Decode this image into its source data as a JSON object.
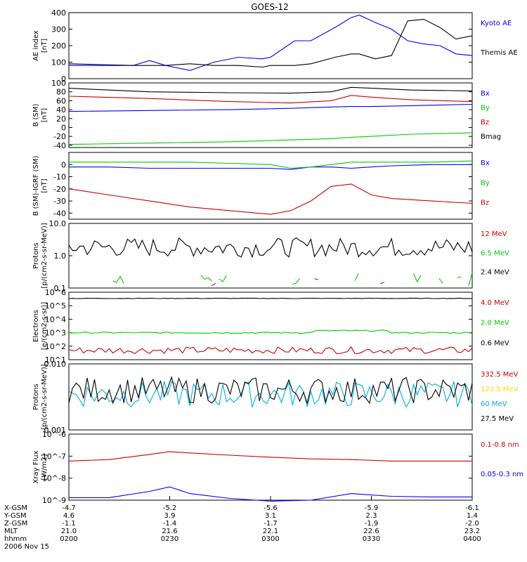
{
  "title": "GOES-12",
  "date": "2006 Nov 15",
  "colors": {
    "black": "#000000",
    "blue": "#0000ff",
    "red": "#cc0000",
    "green": "#00cc00",
    "yellow": "#ffd700",
    "cyan": "#00b0e0"
  },
  "footer": {
    "row_labels": [
      "X-GSM",
      "Y-GSM",
      "Z-GSM",
      "MLT",
      "hhmm"
    ],
    "columns": [
      [
        "-4.7",
        "4.6",
        "-1.1",
        "21.0",
        "0200"
      ],
      [
        "-5.2",
        "3.9",
        "-1.4",
        "21.6",
        "0230"
      ],
      [
        "-5.6",
        "3.1",
        "-1.7",
        "22.1",
        "0300"
      ],
      [
        "-5.9",
        "2.3",
        "-1.9",
        "22.6",
        "0330"
      ],
      [
        "-6.1",
        "1.4",
        "-2.0",
        "23.2",
        "0400"
      ]
    ]
  },
  "chart_data": [
    {
      "type": "line",
      "ylabel": "AE index",
      "yunit": "[nT]",
      "ylim": [
        0,
        400
      ],
      "yticks": [
        "0",
        "100",
        "200",
        "300",
        "400"
      ],
      "x": [
        0,
        0.08,
        0.16,
        0.2,
        0.24,
        0.3,
        0.36,
        0.42,
        0.48,
        0.5,
        0.56,
        0.6,
        0.66,
        0.7,
        0.72,
        0.76,
        0.8,
        0.84,
        0.88,
        0.92,
        0.96,
        1.0
      ],
      "series": [
        {
          "name": "Kyoto AE",
          "color": "#0000ff",
          "values": [
            80,
            80,
            80,
            110,
            80,
            50,
            100,
            130,
            120,
            130,
            230,
            230,
            310,
            370,
            385,
            340,
            300,
            230,
            210,
            200,
            150,
            140
          ]
        },
        {
          "name": "Themis AE",
          "color": "#000000",
          "values": [
            90,
            85,
            80,
            80,
            80,
            90,
            80,
            80,
            70,
            80,
            80,
            90,
            130,
            150,
            150,
            120,
            140,
            350,
            360,
            310,
            240,
            260
          ]
        }
      ]
    },
    {
      "type": "line",
      "ylabel": "B (SM)",
      "yunit": "[nT]",
      "ylim": [
        -45,
        100
      ],
      "yticks": [
        "-40",
        "-20",
        "0",
        "20",
        "40",
        "60",
        "80",
        "100"
      ],
      "x": [
        0,
        0.2,
        0.4,
        0.55,
        0.65,
        0.7,
        0.75,
        0.85,
        1.0
      ],
      "series": [
        {
          "name": "Bx",
          "color": "#0000ff",
          "values": [
            36,
            38,
            40,
            43,
            46,
            47,
            47,
            49,
            52
          ]
        },
        {
          "name": "By",
          "color": "#00cc00",
          "values": [
            -38,
            -35,
            -32,
            -28,
            -25,
            -22,
            -20,
            -15,
            -12
          ]
        },
        {
          "name": "Bz",
          "color": "#cc0000",
          "values": [
            70,
            65,
            58,
            55,
            60,
            72,
            68,
            62,
            58
          ]
        },
        {
          "name": "Bmag",
          "color": "#000000",
          "values": [
            88,
            80,
            78,
            77,
            80,
            90,
            88,
            84,
            82
          ]
        }
      ]
    },
    {
      "type": "line",
      "ylabel": "B (SM)-IGRF (SM)",
      "yunit": "[nT]",
      "ylim": [
        -45,
        10
      ],
      "yticks": [
        "-40",
        "-30",
        "-20",
        "-10",
        "0"
      ],
      "x": [
        0,
        0.1,
        0.2,
        0.3,
        0.4,
        0.5,
        0.55,
        0.6,
        0.65,
        0.7,
        0.75,
        0.8,
        0.9,
        1.0
      ],
      "series": [
        {
          "name": "Bx",
          "color": "#0000ff",
          "values": [
            -2,
            -2,
            -3,
            -3,
            -3,
            -3,
            -4,
            -2,
            -2,
            -3,
            -2,
            -1,
            0,
            0
          ]
        },
        {
          "name": "By",
          "color": "#00cc00",
          "values": [
            2,
            2,
            2,
            2,
            1,
            0,
            -3,
            -2,
            0,
            2,
            2,
            2,
            2,
            3
          ]
        },
        {
          "name": "Bz",
          "color": "#cc0000",
          "values": [
            -20,
            -25,
            -30,
            -35,
            -38,
            -41,
            -38,
            -30,
            -18,
            -16,
            -25,
            -28,
            -30,
            -32
          ]
        }
      ]
    },
    {
      "type": "line",
      "ylabel": "Protons",
      "yunit": "[p/(cm2-s-sr-MeV)]",
      "log": true,
      "ylim": [
        0.1,
        10
      ],
      "yticks": [
        "0.1",
        "1.0",
        "10.0"
      ],
      "series": [
        {
          "name": "12 MeV",
          "color": "#cc0000"
        },
        {
          "name": "6.5 MeV",
          "color": "#00cc00"
        },
        {
          "name": "2.4 MeV",
          "color": "#000000"
        }
      ]
    },
    {
      "type": "line",
      "ylabel": "Electrons",
      "yunit": "[e/(cm2-s-sr)]",
      "log": true,
      "ylim": [
        10,
        1000000
      ],
      "yticks": [
        "10^1",
        "10^2",
        "10^3",
        "10^4",
        "10^5",
        "10^6"
      ],
      "series": [
        {
          "name": "4.0 MeV",
          "color": "#cc0000",
          "values_approx": [
            50,
            60
          ]
        },
        {
          "name": "2.0 MeV",
          "color": "#00cc00",
          "values_approx": [
            800,
            1200
          ]
        },
        {
          "name": "0.6 MeV",
          "color": "#000000",
          "values_approx": [
            300000,
            400000
          ]
        }
      ]
    },
    {
      "type": "line",
      "ylabel": "Protons",
      "yunit": "[p/(cm2-s-sr-MeV)]",
      "log": true,
      "ylim": [
        0.001,
        0.1
      ],
      "yticks": [
        "0.001",
        "0.010"
      ],
      "series": [
        {
          "name": "332.5 MeV",
          "color": "#cc0000"
        },
        {
          "name": "122.5 MeV",
          "color": "#ffd700"
        },
        {
          "name": "60 MeV",
          "color": "#00b0e0"
        },
        {
          "name": "27.5 MeV",
          "color": "#000000"
        }
      ]
    },
    {
      "type": "line",
      "ylabel": "Xray Flux",
      "yunit": "[W/m2]",
      "log": true,
      "ylim": [
        1e-09,
        1e-06
      ],
      "yticks": [
        "10^-9",
        "10^-8",
        "10^-7",
        "10^-6"
      ],
      "x": [
        0,
        0.1,
        0.2,
        0.25,
        0.3,
        0.4,
        0.5,
        0.6,
        0.7,
        0.8,
        0.9,
        1.0
      ],
      "series": [
        {
          "name": "0.1-0.8 nm",
          "color": "#cc0000",
          "values": [
            6e-08,
            7e-08,
            1.2e-07,
            1.6e-07,
            1.4e-07,
            1.1e-07,
            9e-08,
            7.5e-08,
            7e-08,
            6e-08,
            6e-08,
            6e-08
          ]
        },
        {
          "name": "0.05-0.3 nm",
          "color": "#0000ff",
          "values": [
            1.3e-09,
            1.3e-09,
            2.5e-09,
            4e-09,
            2e-09,
            1.2e-09,
            9e-10,
            1e-09,
            2e-09,
            1.5e-09,
            1.4e-09,
            1.4e-09
          ]
        }
      ]
    }
  ]
}
